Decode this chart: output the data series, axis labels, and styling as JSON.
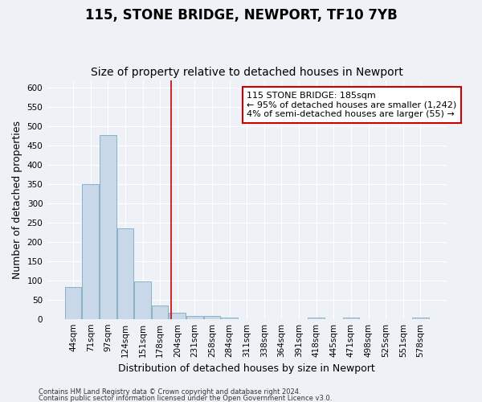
{
  "title": "115, STONE BRIDGE, NEWPORT, TF10 7YB",
  "subtitle": "Size of property relative to detached houses in Newport",
  "xlabel": "Distribution of detached houses by size in Newport",
  "ylabel": "Number of detached properties",
  "categories": [
    "44sqm",
    "71sqm",
    "97sqm",
    "124sqm",
    "151sqm",
    "178sqm",
    "204sqm",
    "231sqm",
    "258sqm",
    "284sqm",
    "311sqm",
    "338sqm",
    "364sqm",
    "391sqm",
    "418sqm",
    "445sqm",
    "471sqm",
    "498sqm",
    "525sqm",
    "551sqm",
    "578sqm"
  ],
  "values": [
    82,
    350,
    477,
    235,
    97,
    35,
    15,
    8,
    8,
    4,
    0,
    0,
    0,
    0,
    4,
    0,
    4,
    0,
    0,
    0,
    4
  ],
  "bar_color": "#c8d8e8",
  "bar_edge_color": "#7aaabf",
  "ylim": [
    0,
    620
  ],
  "yticks": [
    0,
    50,
    100,
    150,
    200,
    250,
    300,
    350,
    400,
    450,
    500,
    550,
    600
  ],
  "vline_x": 5.63,
  "vline_color": "#cc0000",
  "annotation_text": "115 STONE BRIDGE: 185sqm\n← 95% of detached houses are smaller (1,242)\n4% of semi-detached houses are larger (55) →",
  "annotation_box_color": "#cc0000",
  "footer1": "Contains HM Land Registry data © Crown copyright and database right 2024.",
  "footer2": "Contains public sector information licensed under the Open Government Licence v3.0.",
  "background_color": "#eef2f7",
  "plot_bg_color": "#eef2f7",
  "grid_color": "#ffffff",
  "title_fontsize": 12,
  "subtitle_fontsize": 10,
  "axis_label_fontsize": 9,
  "tick_fontsize": 7.5,
  "annotation_fontsize": 8,
  "footer_fontsize": 6
}
